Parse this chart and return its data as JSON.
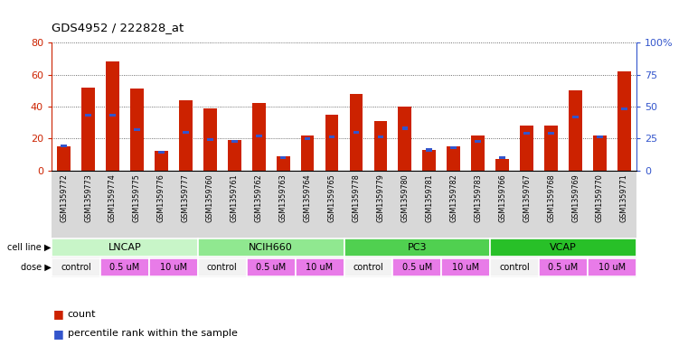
{
  "title": "GDS4952 / 222828_at",
  "samples": [
    "GSM1359772",
    "GSM1359773",
    "GSM1359774",
    "GSM1359775",
    "GSM1359776",
    "GSM1359777",
    "GSM1359760",
    "GSM1359761",
    "GSM1359762",
    "GSM1359763",
    "GSM1359764",
    "GSM1359765",
    "GSM1359778",
    "GSM1359779",
    "GSM1359780",
    "GSM1359781",
    "GSM1359782",
    "GSM1359783",
    "GSM1359766",
    "GSM1359767",
    "GSM1359768",
    "GSM1359769",
    "GSM1359770",
    "GSM1359771"
  ],
  "counts": [
    15,
    52,
    68,
    51,
    12,
    44,
    39,
    19,
    42,
    9,
    22,
    35,
    48,
    31,
    40,
    13,
    15,
    22,
    7,
    28,
    28,
    50,
    22,
    62
  ],
  "percentiles": [
    19,
    43,
    43,
    32,
    14,
    30,
    24,
    23,
    27,
    10,
    25,
    26,
    30,
    26,
    33,
    16,
    18,
    23,
    10,
    29,
    29,
    42,
    26,
    48
  ],
  "cell_lines": [
    {
      "label": "LNCAP",
      "start": 0,
      "end": 6
    },
    {
      "label": "NCIH660",
      "start": 6,
      "end": 12
    },
    {
      "label": "PC3",
      "start": 12,
      "end": 18
    },
    {
      "label": "VCAP",
      "start": 18,
      "end": 24
    }
  ],
  "cell_line_colors": [
    "#c8f5c8",
    "#90e890",
    "#50d050",
    "#28c028"
  ],
  "bar_color": "#cc2200",
  "percentile_color": "#3355cc",
  "count_max": 80,
  "percentile_max": 100,
  "background_color": "#ffffff",
  "plot_bg_color": "#ffffff",
  "grid_color": "#000000",
  "tick_color_left": "#cc2200",
  "tick_color_right": "#3355cc",
  "label_area_color": "#d8d8d8",
  "dose_control_color": "#f2f2f2",
  "dose_um_color": "#e87be8"
}
